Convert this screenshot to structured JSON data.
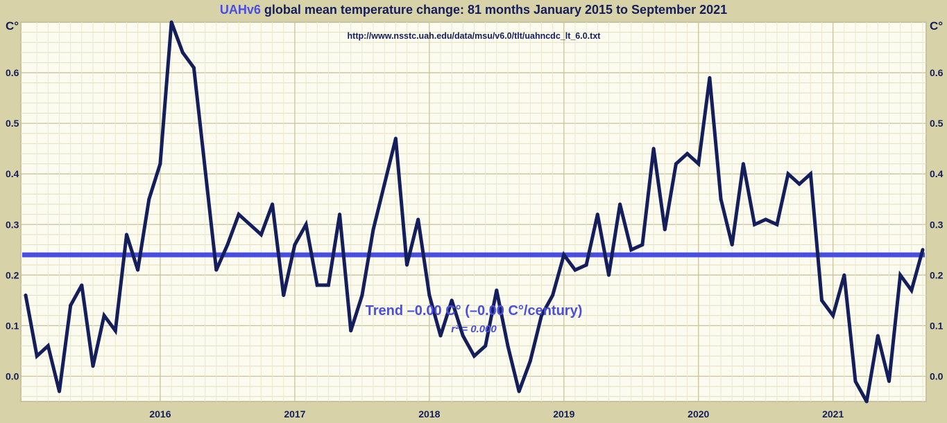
{
  "header": {
    "title_accent": "UAHv6",
    "title_rest": " global mean temperature change: 81 months January 2015 to September 2021"
  },
  "chart_data": {
    "type": "line",
    "title": "UAHv6 global mean temperature change: 81 months January 2015 to September 2021",
    "source_text": "http://www.nsstc.uah.edu/data/msu/v6.0/tlt/uahncdc_lt_6.0.txt",
    "y_unit": "C°",
    "ylim": [
      -0.05,
      0.7
    ],
    "y_ticks": [
      0.0,
      0.1,
      0.2,
      0.3,
      0.4,
      0.5,
      0.6
    ],
    "y_tick_labels": [
      "0.0",
      "0.1",
      "0.2",
      "0.3",
      "0.4",
      "0.5",
      "0.6"
    ],
    "x_tick_labels": [
      "2016",
      "2017",
      "2018",
      "2019",
      "2020",
      "2021"
    ],
    "x_start": "2015-01",
    "x_end": "2021-09",
    "grid": true,
    "series": [
      {
        "color": "#141e5a",
        "x": [
          "2015-01",
          "2015-02",
          "2015-03",
          "2015-04",
          "2015-05",
          "2015-06",
          "2015-07",
          "2015-08",
          "2015-09",
          "2015-10",
          "2015-11",
          "2015-12",
          "2016-01",
          "2016-02",
          "2016-03",
          "2016-04",
          "2016-05",
          "2016-06",
          "2016-07",
          "2016-08",
          "2016-09",
          "2016-10",
          "2016-11",
          "2016-12",
          "2017-01",
          "2017-02",
          "2017-03",
          "2017-04",
          "2017-05",
          "2017-06",
          "2017-07",
          "2017-08",
          "2017-09",
          "2017-10",
          "2017-11",
          "2017-12",
          "2018-01",
          "2018-02",
          "2018-03",
          "2018-04",
          "2018-05",
          "2018-06",
          "2018-07",
          "2018-08",
          "2018-09",
          "2018-10",
          "2018-11",
          "2018-12",
          "2019-01",
          "2019-02",
          "2019-03",
          "2019-04",
          "2019-05",
          "2019-06",
          "2019-07",
          "2019-08",
          "2019-09",
          "2019-10",
          "2019-11",
          "2019-12",
          "2020-01",
          "2020-02",
          "2020-03",
          "2020-04",
          "2020-05",
          "2020-06",
          "2020-07",
          "2020-08",
          "2020-09",
          "2020-10",
          "2020-11",
          "2020-12",
          "2021-01",
          "2021-02",
          "2021-03",
          "2021-04",
          "2021-05",
          "2021-06",
          "2021-07",
          "2021-08",
          "2021-09"
        ],
        "values": [
          0.16,
          0.04,
          0.06,
          -0.03,
          0.14,
          0.18,
          0.02,
          0.12,
          0.09,
          0.28,
          0.21,
          0.35,
          0.42,
          0.7,
          0.64,
          0.61,
          0.41,
          0.21,
          0.26,
          0.32,
          0.3,
          0.28,
          0.34,
          0.16,
          0.26,
          0.3,
          0.18,
          0.18,
          0.32,
          0.09,
          0.16,
          0.29,
          0.38,
          0.47,
          0.22,
          0.31,
          0.16,
          0.08,
          0.15,
          0.08,
          0.04,
          0.06,
          0.17,
          0.06,
          -0.03,
          0.03,
          0.12,
          0.16,
          0.24,
          0.21,
          0.22,
          0.32,
          0.2,
          0.34,
          0.25,
          0.26,
          0.45,
          0.29,
          0.42,
          0.44,
          0.42,
          0.59,
          0.35,
          0.26,
          0.42,
          0.3,
          0.31,
          0.3,
          0.4,
          0.38,
          0.4,
          0.15,
          0.12,
          0.2,
          -0.01,
          -0.05,
          0.08,
          -0.01,
          0.2,
          0.17,
          0.25
        ]
      }
    ],
    "trend": {
      "value": 0.24,
      "color": "#4a4ee0",
      "label": "Trend –0.00 C° (–0.00 C°/century)",
      "r2_label": "r² = 0.000"
    }
  }
}
